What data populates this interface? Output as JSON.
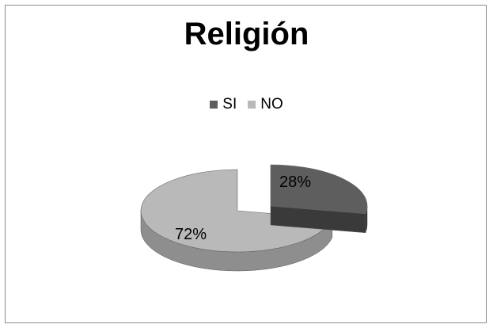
{
  "chart_data": {
    "type": "pie",
    "title": "Religión",
    "legend_position": "top",
    "categories": [
      "SI",
      "NO"
    ],
    "values": [
      28,
      72
    ],
    "data_labels": [
      "28%",
      "72%"
    ],
    "colors": [
      "#5e5e5e",
      "#b9b9b9"
    ],
    "style": "3d-exploded"
  }
}
